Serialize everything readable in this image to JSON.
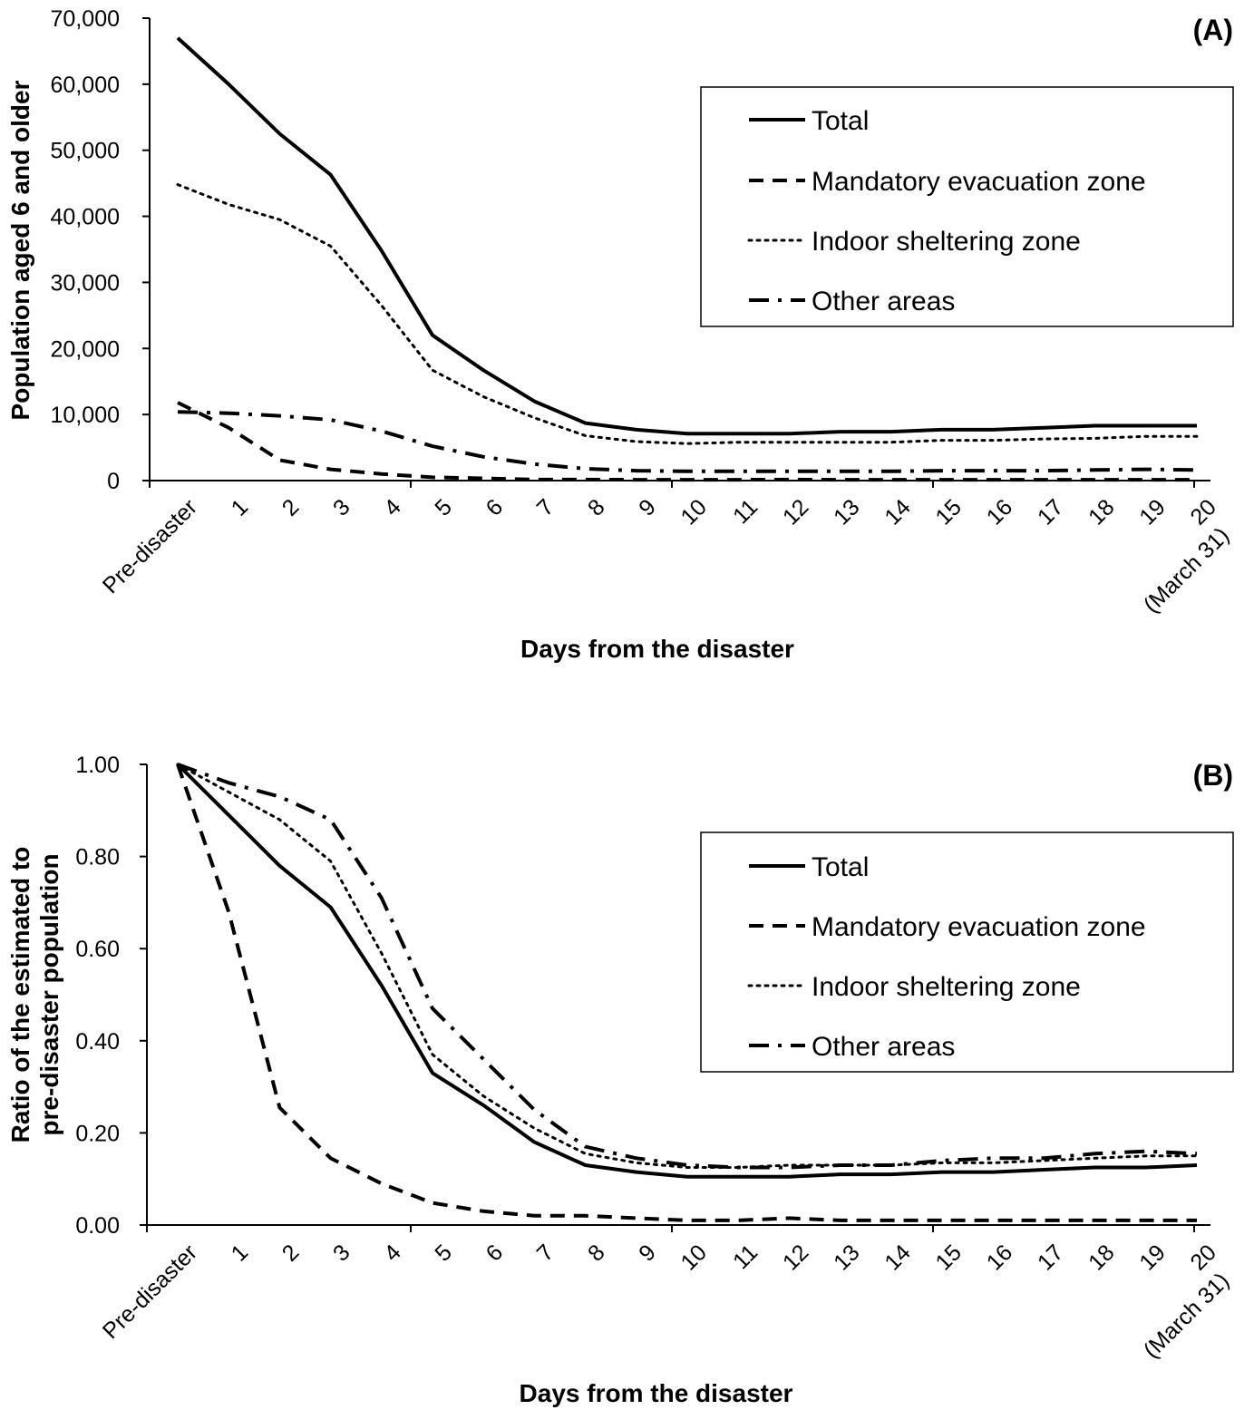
{
  "chart_data": [
    {
      "type": "line",
      "panel_label": "(A)",
      "xlabel": "Days from the disaster",
      "ylabel": "Population aged 6 and older",
      "categories": [
        "Pre-disaster",
        "1",
        "2",
        "3",
        "4",
        "5",
        "6",
        "7",
        "8",
        "9",
        "10",
        "11",
        "12",
        "13",
        "14",
        "15",
        "16",
        "17",
        "18",
        "19",
        "(March 31) 20"
      ],
      "x_tick_lines": [
        [
          "Pre-disaster"
        ],
        [
          "1"
        ],
        [
          "2"
        ],
        [
          "3"
        ],
        [
          "4"
        ],
        [
          "5"
        ],
        [
          "6"
        ],
        [
          "7"
        ],
        [
          "8"
        ],
        [
          "9"
        ],
        [
          "10"
        ],
        [
          "11"
        ],
        [
          "12"
        ],
        [
          "13"
        ],
        [
          "14"
        ],
        [
          "15"
        ],
        [
          "16"
        ],
        [
          "17"
        ],
        [
          "18"
        ],
        [
          "19"
        ],
        [
          "(March 31)",
          "20"
        ]
      ],
      "ylim": [
        0,
        70000
      ],
      "y_ticks": [
        0,
        10000,
        20000,
        30000,
        40000,
        50000,
        60000,
        70000
      ],
      "y_tick_labels": [
        "0",
        "10,000",
        "20,000",
        "30,000",
        "40,000",
        "50,000",
        "60,000",
        "70,000"
      ],
      "legend_position": "top-right",
      "series": [
        {
          "name": "Total",
          "style": "solid",
          "values": [
            67000,
            60000,
            52500,
            46300,
            34800,
            22000,
            16700,
            12000,
            8700,
            7700,
            7100,
            7100,
            7100,
            7400,
            7400,
            7700,
            7700,
            8000,
            8300,
            8300,
            8300
          ]
        },
        {
          "name": "Mandatory evacuation zone",
          "style": "dashed",
          "values": [
            11800,
            8000,
            3100,
            1700,
            1000,
            500,
            350,
            150,
            150,
            120,
            120,
            120,
            150,
            120,
            120,
            120,
            120,
            120,
            120,
            120,
            120
          ]
        },
        {
          "name": "Indoor sheltering zone",
          "style": "dotted",
          "values": [
            44800,
            41800,
            39500,
            35500,
            26500,
            16700,
            12700,
            9500,
            6800,
            5900,
            5600,
            5800,
            5800,
            5800,
            5800,
            6100,
            6100,
            6300,
            6400,
            6700,
            6700
          ]
        },
        {
          "name": "Other areas",
          "style": "dashdot",
          "values": [
            10400,
            10200,
            9800,
            9200,
            7500,
            5200,
            3600,
            2500,
            1800,
            1500,
            1400,
            1400,
            1400,
            1400,
            1400,
            1500,
            1500,
            1500,
            1600,
            1700,
            1600
          ]
        }
      ]
    },
    {
      "type": "line",
      "panel_label": "(B)",
      "xlabel": "Days from the disaster",
      "ylabel_lines": [
        "Ratio of the estimated to",
        "pre-disaster population"
      ],
      "categories": [
        "Pre-disaster",
        "1",
        "2",
        "3",
        "4",
        "5",
        "6",
        "7",
        "8",
        "9",
        "10",
        "11",
        "12",
        "13",
        "14",
        "15",
        "16",
        "17",
        "18",
        "19",
        "(March 31) 20"
      ],
      "x_tick_lines": [
        [
          "Pre-disaster"
        ],
        [
          "1"
        ],
        [
          "2"
        ],
        [
          "3"
        ],
        [
          "4"
        ],
        [
          "5"
        ],
        [
          "6"
        ],
        [
          "7"
        ],
        [
          "8"
        ],
        [
          "9"
        ],
        [
          "10"
        ],
        [
          "11"
        ],
        [
          "12"
        ],
        [
          "13"
        ],
        [
          "14"
        ],
        [
          "15"
        ],
        [
          "16"
        ],
        [
          "17"
        ],
        [
          "18"
        ],
        [
          "19"
        ],
        [
          "(March 31)",
          "20"
        ]
      ],
      "ylim": [
        0,
        1.0
      ],
      "y_ticks": [
        0,
        0.2,
        0.4,
        0.6,
        0.8,
        1.0
      ],
      "y_tick_labels": [
        "0.00",
        "0.20",
        "0.40",
        "0.60",
        "0.80",
        "1.00"
      ],
      "legend_position": "top-right",
      "series": [
        {
          "name": "Total",
          "style": "solid",
          "values": [
            1.0,
            0.89,
            0.78,
            0.69,
            0.52,
            0.33,
            0.26,
            0.18,
            0.13,
            0.115,
            0.105,
            0.105,
            0.105,
            0.11,
            0.11,
            0.115,
            0.115,
            0.12,
            0.125,
            0.125,
            0.13
          ]
        },
        {
          "name": "Mandatory evacuation zone",
          "style": "dashed",
          "values": [
            1.0,
            0.68,
            0.255,
            0.145,
            0.09,
            0.048,
            0.03,
            0.02,
            0.02,
            0.015,
            0.01,
            0.01,
            0.015,
            0.01,
            0.01,
            0.01,
            0.01,
            0.01,
            0.01,
            0.01,
            0.01
          ]
        },
        {
          "name": "Indoor sheltering zone",
          "style": "dotted",
          "values": [
            1.0,
            0.94,
            0.88,
            0.79,
            0.59,
            0.37,
            0.28,
            0.21,
            0.155,
            0.135,
            0.125,
            0.125,
            0.13,
            0.13,
            0.13,
            0.135,
            0.135,
            0.14,
            0.145,
            0.15,
            0.15
          ]
        },
        {
          "name": "Other areas",
          "style": "dashdot",
          "values": [
            1.0,
            0.96,
            0.93,
            0.88,
            0.71,
            0.47,
            0.36,
            0.25,
            0.17,
            0.145,
            0.13,
            0.125,
            0.125,
            0.13,
            0.13,
            0.14,
            0.145,
            0.145,
            0.155,
            0.16,
            0.155
          ]
        }
      ]
    }
  ]
}
